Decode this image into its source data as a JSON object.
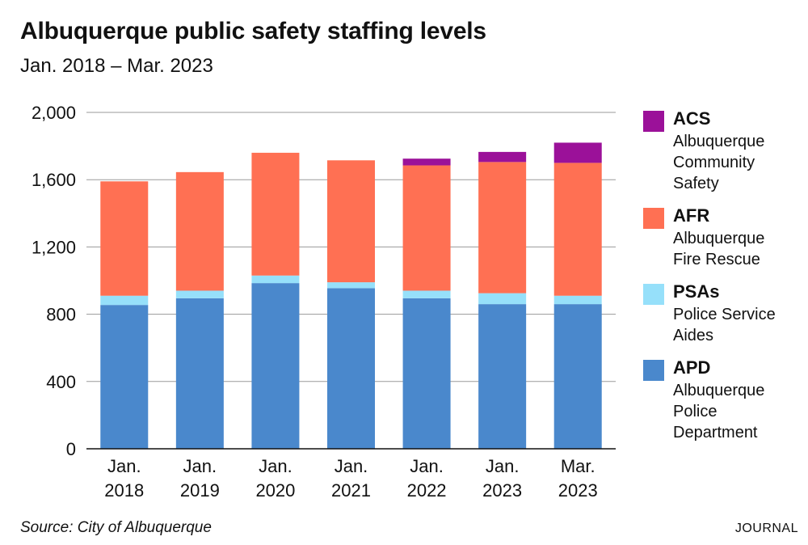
{
  "header": {
    "title": "Albuquerque public safety staffing levels",
    "subtitle": "Jan. 2018 – Mar. 2023"
  },
  "footer": {
    "source": "Source: City of Albuquerque",
    "credit": "JOURNAL"
  },
  "legend": [
    {
      "key": "ACS",
      "code": "ACS",
      "name": "Albuquerque\nCommunity\nSafety",
      "color": "#9b1199"
    },
    {
      "key": "AFR",
      "code": "AFR",
      "name": "Albuquerque\nFire Rescue",
      "color": "#ff7053"
    },
    {
      "key": "PSAs",
      "code": "PSAs",
      "name": "Police Service\nAides",
      "color": "#96e0fa"
    },
    {
      "key": "APD",
      "code": "APD",
      "name": "Albuquerque\nPolice\nDepartment",
      "color": "#4a88cc"
    }
  ],
  "chart_data": {
    "type": "bar",
    "stacked": true,
    "categories": [
      [
        "Jan.",
        "2018"
      ],
      [
        "Jan.",
        "2019"
      ],
      [
        "Jan.",
        "2020"
      ],
      [
        "Jan.",
        "2021"
      ],
      [
        "Jan.",
        "2022"
      ],
      [
        "Jan.",
        "2023"
      ],
      [
        "Mar.",
        "2023"
      ]
    ],
    "series": [
      {
        "name": "APD",
        "color": "#4a88cc",
        "values": [
          855,
          895,
          985,
          955,
          895,
          860,
          860
        ]
      },
      {
        "name": "PSAs",
        "color": "#96e0fa",
        "values": [
          55,
          45,
          45,
          35,
          45,
          65,
          50
        ]
      },
      {
        "name": "AFR",
        "color": "#ff7053",
        "values": [
          680,
          705,
          730,
          725,
          745,
          780,
          790
        ]
      },
      {
        "name": "ACS",
        "color": "#9b1199",
        "values": [
          0,
          0,
          0,
          0,
          40,
          60,
          120
        ]
      }
    ],
    "ylim": [
      0,
      2000
    ],
    "yticks": [
      0,
      400,
      800,
      1200,
      1600,
      2000
    ],
    "ytick_labels": [
      "0",
      "400",
      "800",
      "1,200",
      "1,600",
      "2,000"
    ],
    "grid": true,
    "legend_position": "right"
  }
}
